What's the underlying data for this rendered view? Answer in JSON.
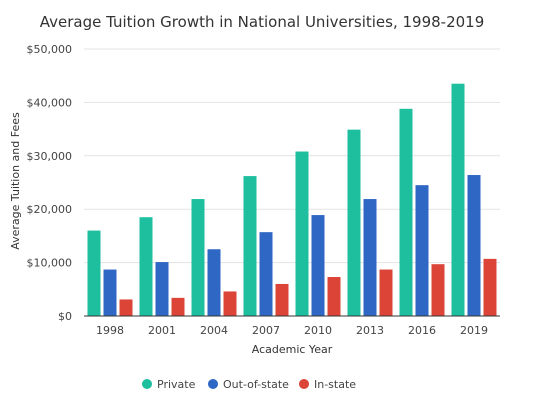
{
  "chart_data": {
    "type": "bar",
    "title": "Average Tuition Growth in National Universities, 1998-2019",
    "xlabel": "Academic Year",
    "ylabel": "Average Tuition and Fees",
    "categories": [
      "1998",
      "2001",
      "2004",
      "2007",
      "2010",
      "2013",
      "2016",
      "2019"
    ],
    "ylim": [
      0,
      50000
    ],
    "yticks": [
      {
        "value": 0,
        "label": "$0"
      },
      {
        "value": 10000,
        "label": "$10,000"
      },
      {
        "value": 20000,
        "label": "$20,000"
      },
      {
        "value": 30000,
        "label": "$30,000"
      },
      {
        "value": 40000,
        "label": "$40,000"
      },
      {
        "value": 50000,
        "label": "$50,000"
      }
    ],
    "grid": true,
    "legend_position": "bottom",
    "series": [
      {
        "name": "Private",
        "color": "#1dbf9f",
        "values": [
          16000,
          18500,
          21900,
          26200,
          30800,
          34900,
          38800,
          43500
        ]
      },
      {
        "name": "Out-of-state",
        "color": "#2f67c4",
        "values": [
          8700,
          10100,
          12500,
          15700,
          18900,
          21900,
          24500,
          26400
        ]
      },
      {
        "name": "In-state",
        "color": "#db4437",
        "values": [
          3100,
          3400,
          4600,
          6000,
          7300,
          8700,
          9700,
          10700
        ]
      }
    ]
  }
}
